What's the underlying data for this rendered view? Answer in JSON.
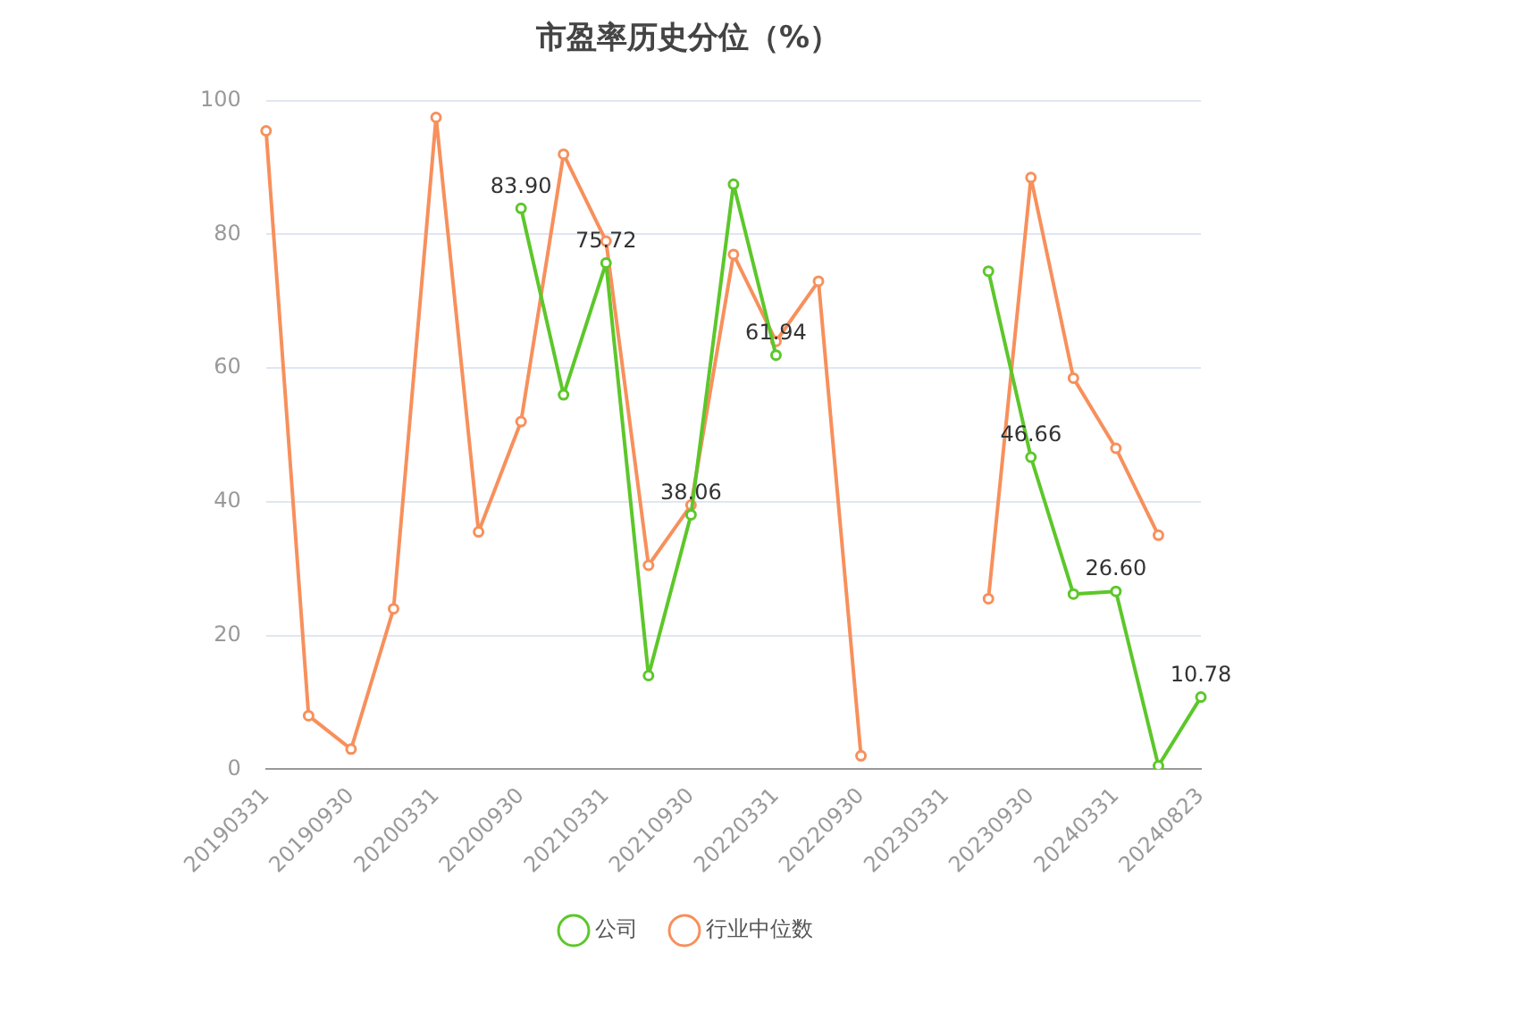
{
  "chart_data": {
    "type": "line",
    "title": "市盈率历史分位（%）",
    "categories": [
      "20190331",
      null,
      "20190930",
      null,
      "20200331",
      null,
      "20200930",
      null,
      "20210331",
      null,
      "20210930",
      null,
      "20220331",
      null,
      "20220930",
      null,
      "20230331",
      null,
      "20230930",
      null,
      "20240331",
      null,
      "20240823"
    ],
    "series": [
      {
        "name": "公司",
        "color": "#5cc72a",
        "values": [
          null,
          null,
          null,
          null,
          null,
          null,
          83.9,
          56,
          75.72,
          14,
          38.06,
          87.5,
          61.94,
          null,
          null,
          null,
          null,
          74.5,
          46.66,
          26.2,
          26.6,
          0.5,
          10.78
        ],
        "value_labels": [
          null,
          null,
          null,
          null,
          null,
          null,
          "83.90",
          null,
          "75.72",
          null,
          "38.06",
          null,
          "61.94",
          null,
          null,
          null,
          null,
          null,
          "46.66",
          null,
          "26.60",
          null,
          "10.78"
        ]
      },
      {
        "name": "行业中位数",
        "color": "#f7905c",
        "values": [
          95.5,
          8,
          3,
          24,
          97.5,
          35.5,
          52,
          92,
          79,
          30.5,
          39.5,
          77,
          64,
          73,
          2,
          null,
          null,
          25.5,
          88.5,
          58.5,
          48,
          35,
          null
        ]
      }
    ],
    "ylim": [
      0,
      100
    ],
    "yticks": [
      0,
      20,
      40,
      60,
      80,
      100
    ],
    "grid": "y",
    "legend": "bottom",
    "marker": "circle",
    "line_style": "solid"
  }
}
